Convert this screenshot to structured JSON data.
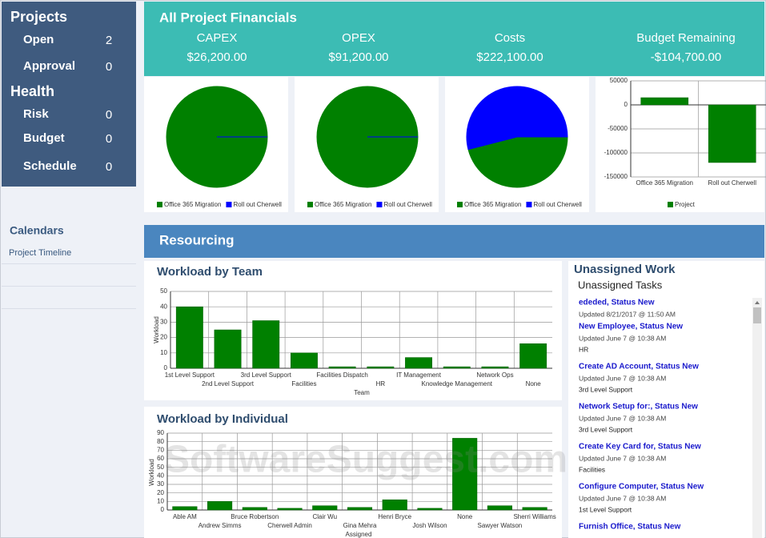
{
  "sidebar": {
    "projects_title": "Projects",
    "projects": [
      {
        "label": "Open",
        "value": 2
      },
      {
        "label": "Approval",
        "value": 0
      }
    ],
    "health_title": "Health",
    "health": [
      {
        "label": "Risk",
        "value": 0
      },
      {
        "label": "Budget",
        "value": 0
      },
      {
        "label": "Schedule",
        "value": 0
      }
    ],
    "calendars_title": "Calendars",
    "calendar_links": [
      "Project Timeline"
    ]
  },
  "financials": {
    "title": "All Project Financials",
    "metrics": [
      {
        "label": "CAPEX",
        "value": "$26,200.00"
      },
      {
        "label": "OPEX",
        "value": "$91,200.00"
      },
      {
        "label": "Costs",
        "value": "$222,100.00"
      },
      {
        "label": "Budget Remaining",
        "value": "-$104,700.00"
      }
    ]
  },
  "resourcing_title": "Resourcing",
  "chart_data": [
    {
      "type": "pie",
      "categories": [
        "Office 365 Migration",
        "Roll out Cherwell"
      ],
      "values": [
        100,
        0
      ],
      "colors": [
        "#008000",
        "#0000ff"
      ]
    },
    {
      "type": "pie",
      "categories": [
        "Office 365 Migration",
        "Roll out Cherwell"
      ],
      "values": [
        100,
        0
      ],
      "colors": [
        "#008000",
        "#0000ff"
      ]
    },
    {
      "type": "pie",
      "categories": [
        "Office 365 Migration",
        "Roll out Cherwell"
      ],
      "values": [
        46,
        54
      ],
      "colors": [
        "#008000",
        "#0000ff"
      ]
    },
    {
      "type": "bar",
      "categories": [
        "Office 365 Migration",
        "Roll out Cherwell"
      ],
      "series": [
        {
          "name": "Project",
          "color": "#008000",
          "values": [
            15000,
            -120000
          ]
        }
      ],
      "ylim": [
        -150000,
        50000
      ],
      "yticks": [
        50000,
        0,
        -50000,
        -100000,
        -150000
      ],
      "grid": true
    },
    {
      "type": "bar",
      "title": "Workload by Team",
      "x_label": "Team",
      "y_label": "Workload",
      "categories": [
        "1st Level Support",
        "2nd Level Support",
        "3rd Level Support",
        "Facilities",
        "Facilities Dispatch",
        "HR",
        "IT Management",
        "Knowledge Management",
        "Network Ops",
        "None"
      ],
      "values": [
        40,
        25,
        31,
        10,
        1,
        1,
        7,
        1,
        1,
        16
      ],
      "color": "#008000",
      "ylim": [
        0,
        50
      ],
      "yticks": [
        0,
        10,
        20,
        30,
        40,
        50
      ],
      "grid": true
    },
    {
      "type": "bar",
      "title": "Workload by Individual",
      "x_label": "Assigned",
      "y_label": "Workload",
      "categories": [
        "Able AM",
        "Andrew Simms",
        "Bruce Robertson",
        "Cherwell Admin",
        "Clair Wu",
        "Gina Mehra",
        "Henri Bryce",
        "Josh Wilson",
        "None",
        "Sawyer Watson",
        "Sherri Williams"
      ],
      "values": [
        4,
        10,
        3,
        2,
        5,
        3,
        12,
        2,
        84,
        5,
        3
      ],
      "color": "#008000",
      "ylim": [
        0,
        90
      ],
      "yticks": [
        0,
        10,
        20,
        30,
        40,
        50,
        60,
        70,
        80,
        90
      ],
      "grid": true
    }
  ],
  "unassigned": {
    "title": "Unassigned Work",
    "subtitle": "Unassigned Tasks",
    "tasks": [
      {
        "title": "ededed, Status New",
        "updated": "Updated 8/21/2017 @ 11:50 AM"
      },
      {
        "title": "New Employee, Status New",
        "updated": "Updated June 7 @ 10:38 AM",
        "team": "HR"
      },
      {
        "title": "Create AD Account, Status New",
        "updated": "Updated June 7 @ 10:38 AM",
        "team": "3rd Level Support"
      },
      {
        "title": "Network Setup for:, Status New",
        "updated": "Updated June 7 @ 10:38 AM",
        "team": "3rd Level Support"
      },
      {
        "title": "Create Key Card for, Status New",
        "updated": "Updated June 7 @ 10:38 AM",
        "team": "Facilities"
      },
      {
        "title": "Configure Computer, Status New",
        "updated": "Updated June 7 @ 10:38 AM",
        "team": "1st Level Support"
      },
      {
        "title": "Furnish Office, Status New"
      }
    ]
  },
  "watermark": "SoftwareSuggest.com"
}
